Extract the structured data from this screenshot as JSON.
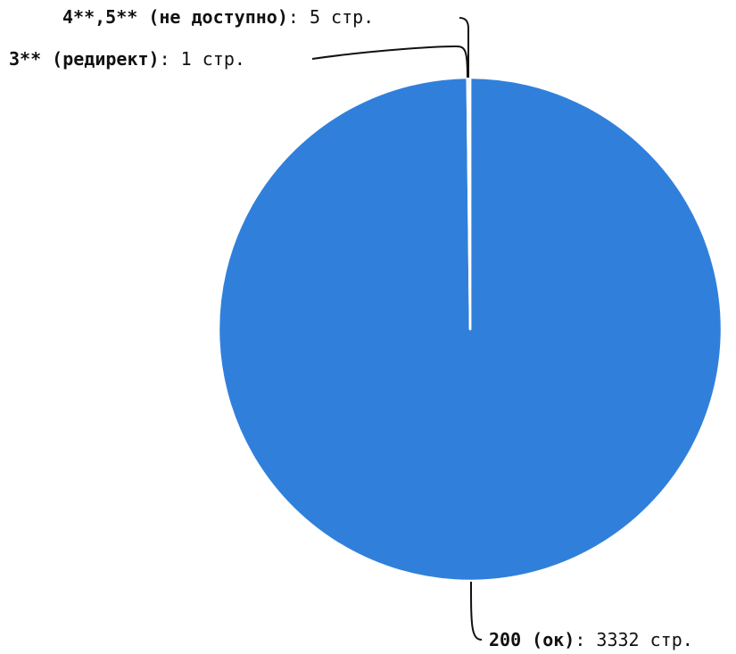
{
  "chart_data": {
    "type": "pie",
    "slices": [
      {
        "label": "200 (ок)",
        "value": 3332,
        "value_text": ": 3332 стр.",
        "color": "#3080db"
      },
      {
        "label": "3** (редирект)",
        "value": 1,
        "value_text": ": 1 стр.",
        "color": "#3080db"
      },
      {
        "label": "4**,5** (не доступно)",
        "value": 5,
        "value_text": ": 5 стр.",
        "color": "#3080db"
      }
    ],
    "slice_separator_color": "#ffffff",
    "legend": "none"
  }
}
